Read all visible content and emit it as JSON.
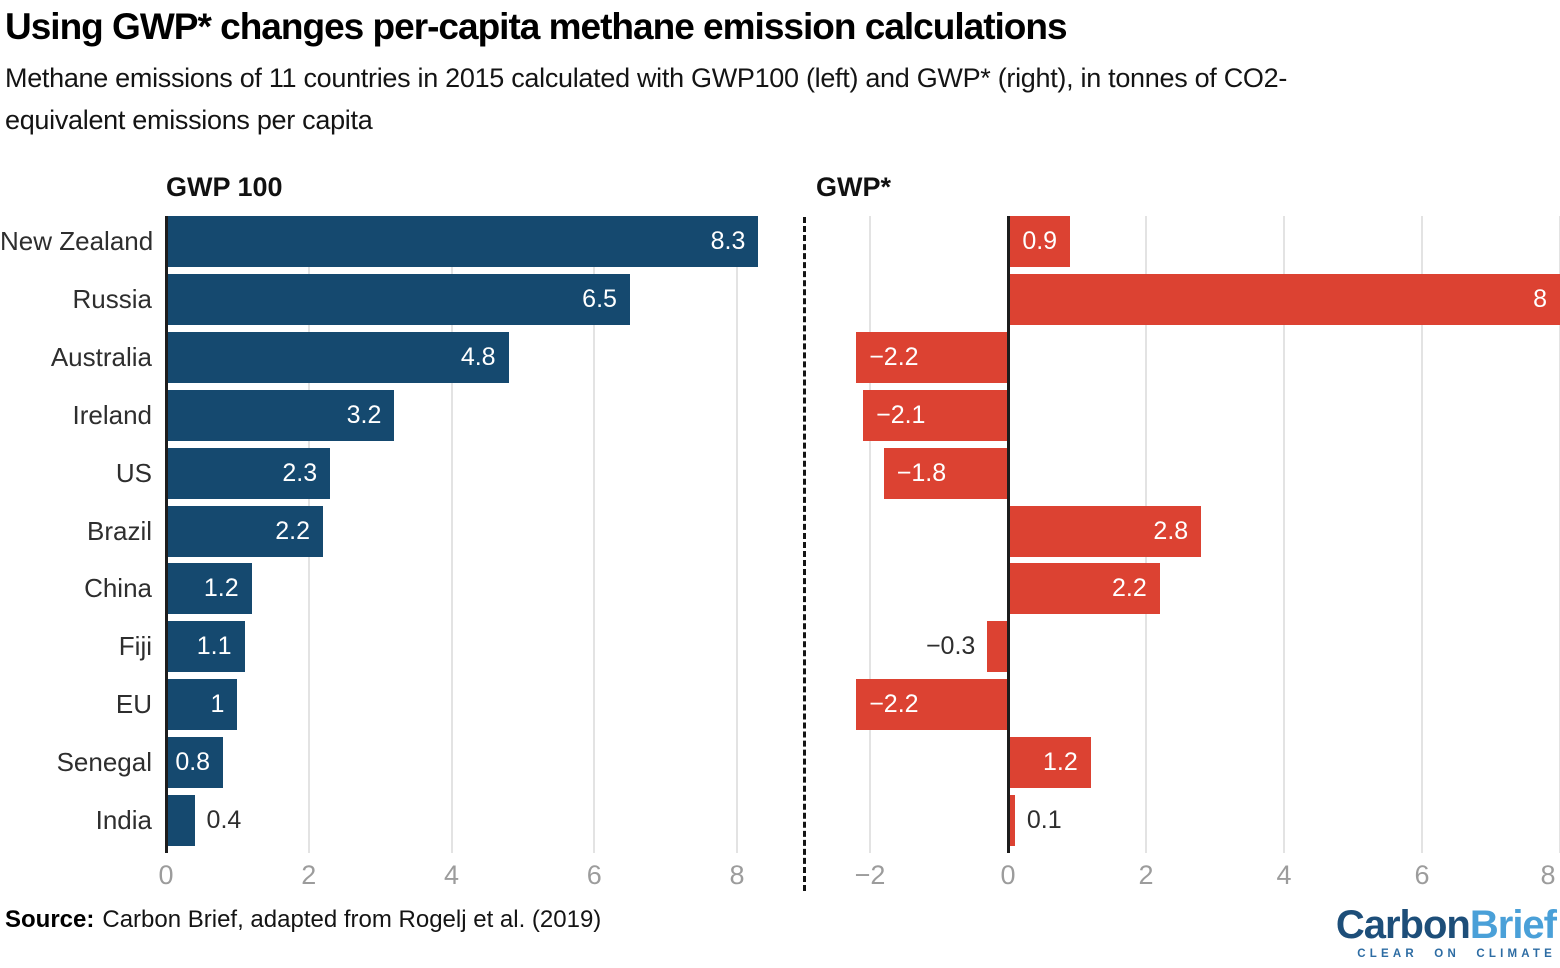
{
  "header": {
    "title": "Using GWP* changes per-capita methane emission calculations",
    "subtitle_line1": "Methane emissions of 11 countries in 2015 calculated with GWP100 (left) and GWP* (right), in tonnes of CO2-",
    "subtitle_line2": "equivalent emissions per capita"
  },
  "chart_data": {
    "type": "bar",
    "orientation": "horizontal",
    "title": "Using GWP* changes per-capita methane emission calculations",
    "xlabel": "",
    "ylabel": "",
    "grid": "vertical-gridlines-on",
    "categories": [
      "New Zealand",
      "Russia",
      "Australia",
      "Ireland",
      "US",
      "Brazil",
      "China",
      "Fiji",
      "EU",
      "Senegal",
      "India"
    ],
    "panels": [
      {
        "title": "GWP 100",
        "color": "#15496f",
        "values": [
          8.3,
          6.5,
          4.8,
          3.2,
          2.3,
          2.2,
          1.2,
          1.1,
          1,
          0.8,
          0.4
        ],
        "labels": [
          "8.3",
          "6.5",
          "4.8",
          "3.2",
          "2.3",
          "2.2",
          "1.2",
          "1.1",
          "1",
          "0.8",
          "0.4"
        ],
        "xlim": [
          0,
          8.4
        ],
        "ticks": [
          {
            "v": 0,
            "label": "0"
          },
          {
            "v": 2,
            "label": "2"
          },
          {
            "v": 4,
            "label": "4"
          },
          {
            "v": 6,
            "label": "6"
          },
          {
            "v": 8,
            "label": "8"
          }
        ]
      },
      {
        "title": "GWP*",
        "color": "#dc4232",
        "values": [
          0.9,
          8,
          -2.2,
          -2.1,
          -1.8,
          2.8,
          2.2,
          -0.3,
          -2.2,
          1.2,
          0.1
        ],
        "labels": [
          "0.9",
          "8",
          "−2.2",
          "−2.1",
          "−1.8",
          "2.8",
          "2.2",
          "−0.3",
          "−2.2",
          "1.2",
          "0.1"
        ],
        "xlim": [
          -2.4,
          8
        ],
        "ticks": [
          {
            "v": -2,
            "label": "−2"
          },
          {
            "v": 0,
            "label": "0"
          },
          {
            "v": 2,
            "label": "2"
          },
          {
            "v": 4,
            "label": "4"
          },
          {
            "v": 6,
            "label": "6"
          },
          {
            "v": 8,
            "label": "8"
          }
        ]
      }
    ]
  },
  "footer": {
    "source_label": "Source:",
    "source_text": "Carbon Brief, adapted from Rogelj et al. (2019)",
    "logo": {
      "carbon": "Carbon",
      "brief": "Brief",
      "tagline": "CLEAR ON CLIMATE"
    }
  },
  "colors": {
    "bar_blue": "#15496f",
    "bar_red": "#dc4232",
    "gridline": "#e3e3e3",
    "zero_axis": "#1d1d1d",
    "tick_text": "#9c9c9c",
    "label_text": "#2e2e2e",
    "logo_dark_blue": "#1d4e79",
    "logo_light_blue": "#4aa0d8"
  }
}
